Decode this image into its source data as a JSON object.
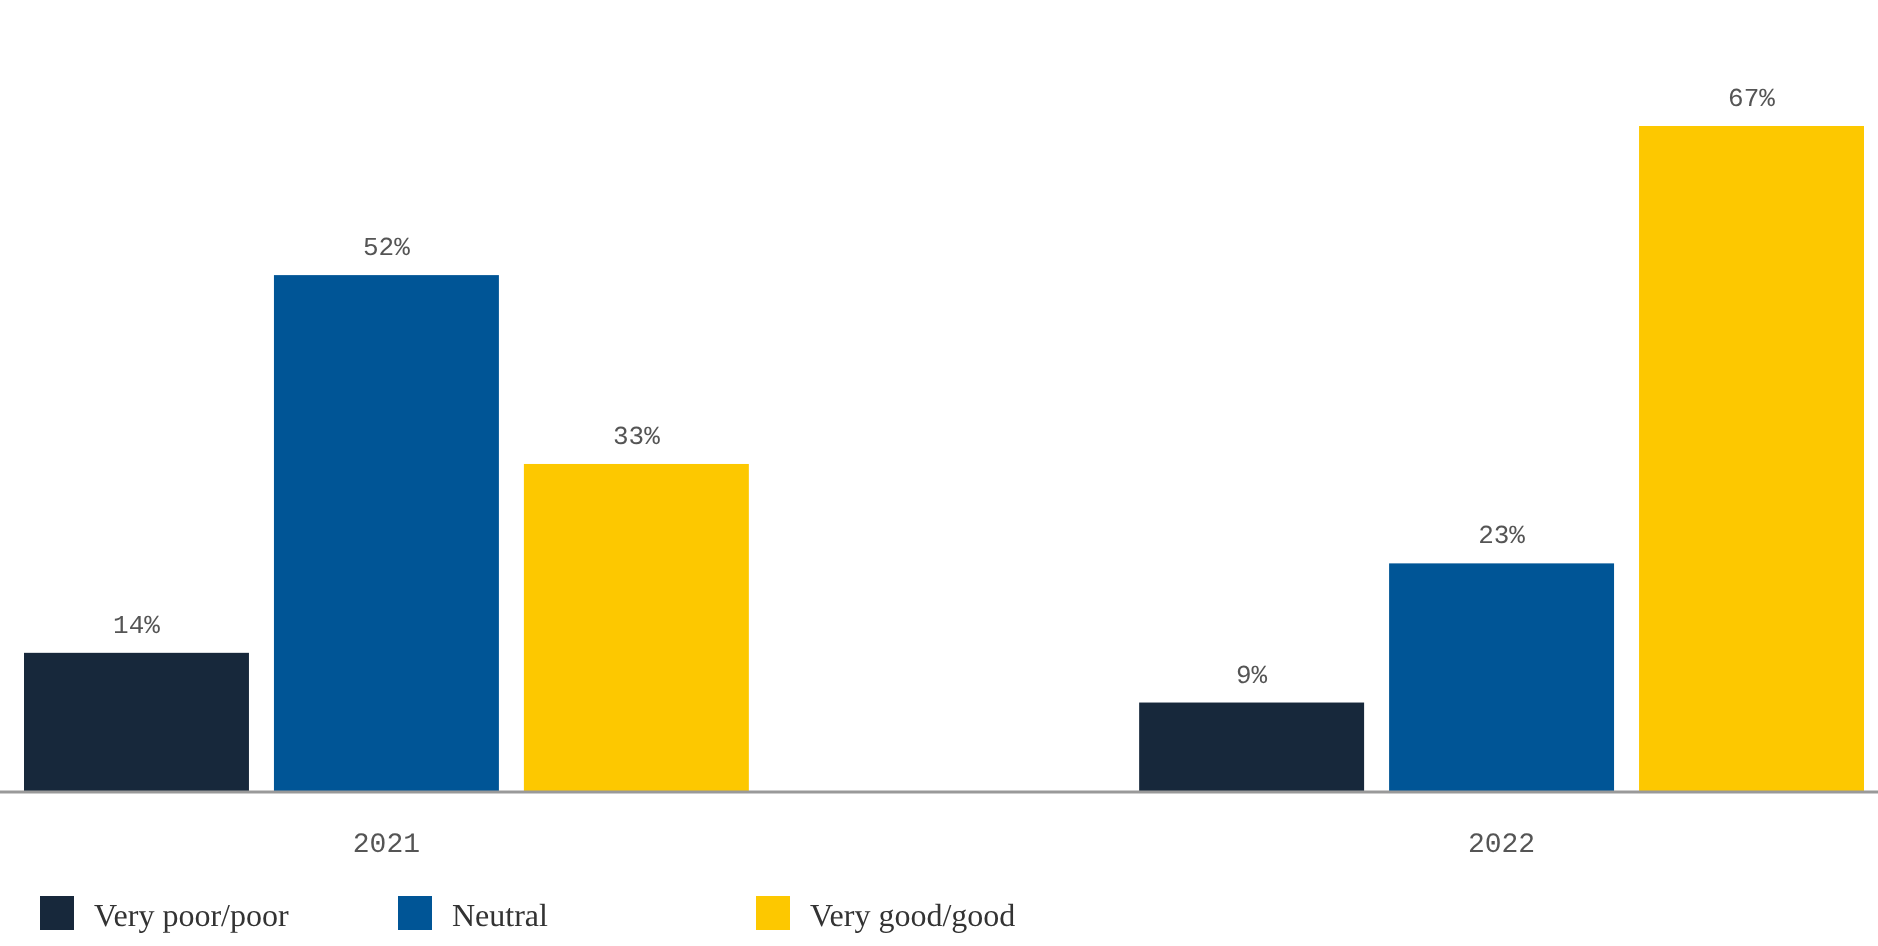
{
  "chart_data": {
    "type": "bar",
    "categories": [
      "2021",
      "2022"
    ],
    "series": [
      {
        "name": "Very poor/poor",
        "color": "#17283b",
        "values": [
          14,
          9
        ],
        "value_labels": [
          "14%",
          "9%"
        ]
      },
      {
        "name": "Neutral",
        "color": "#005596",
        "values": [
          52,
          23
        ],
        "value_labels": [
          "52%",
          "23%"
        ]
      },
      {
        "name": "Very good/good",
        "color": "#fdc800",
        "values": [
          33,
          67
        ],
        "value_labels": [
          "33%",
          "67%"
        ]
      }
    ],
    "legend": "bottom left",
    "grid": false
  }
}
